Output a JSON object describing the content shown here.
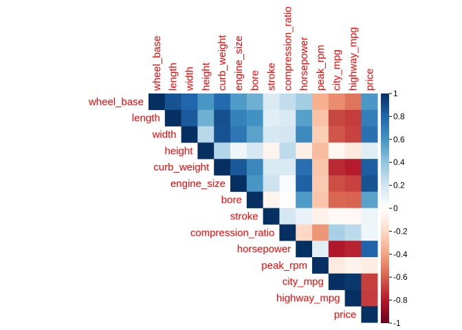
{
  "chart_data": {
    "type": "heatmap",
    "title": "",
    "layout": "upper-triangle",
    "variables": [
      "wheel_base",
      "length",
      "width",
      "height",
      "curb_weight",
      "engine_size",
      "bore",
      "stroke",
      "compression_ratio",
      "horsepower",
      "peak_rpm",
      "city_mpg",
      "highway_mpg",
      "price"
    ],
    "matrix": [
      [
        1.0,
        0.87,
        0.8,
        0.59,
        0.78,
        0.57,
        0.49,
        0.16,
        0.25,
        0.35,
        -0.36,
        -0.47,
        -0.54,
        0.58
      ],
      [
        null,
        1.0,
        0.84,
        0.49,
        0.88,
        0.68,
        0.61,
        0.13,
        0.16,
        0.55,
        -0.29,
        -0.67,
        -0.7,
        0.69
      ],
      [
        null,
        null,
        1.0,
        0.28,
        0.87,
        0.73,
        0.54,
        0.18,
        0.19,
        0.64,
        -0.25,
        -0.63,
        -0.68,
        0.75
      ],
      [
        null,
        null,
        null,
        1.0,
        0.3,
        0.07,
        0.18,
        -0.06,
        0.26,
        -0.09,
        -0.31,
        -0.05,
        -0.11,
        0.14
      ],
      [
        null,
        null,
        null,
        null,
        1.0,
        0.85,
        0.65,
        0.17,
        0.16,
        0.76,
        -0.28,
        -0.75,
        -0.79,
        0.83
      ],
      [
        null,
        null,
        null,
        null,
        null,
        1.0,
        0.59,
        0.21,
        0.03,
        0.82,
        -0.26,
        -0.65,
        -0.68,
        0.87
      ],
      [
        null,
        null,
        null,
        null,
        null,
        null,
        1.0,
        -0.06,
        0.0,
        0.57,
        -0.28,
        -0.58,
        -0.59,
        0.54
      ],
      [
        null,
        null,
        null,
        null,
        null,
        null,
        null,
        1.0,
        0.19,
        0.1,
        -0.07,
        -0.03,
        -0.04,
        0.08
      ],
      [
        null,
        null,
        null,
        null,
        null,
        null,
        null,
        null,
        1.0,
        -0.21,
        -0.44,
        0.33,
        0.27,
        0.07
      ],
      [
        null,
        null,
        null,
        null,
        null,
        null,
        null,
        null,
        null,
        1.0,
        0.13,
        -0.8,
        -0.77,
        0.81
      ],
      [
        null,
        null,
        null,
        null,
        null,
        null,
        null,
        null,
        null,
        null,
        1.0,
        -0.11,
        -0.06,
        -0.1
      ],
      [
        null,
        null,
        null,
        null,
        null,
        null,
        null,
        null,
        null,
        null,
        null,
        1.0,
        0.97,
        -0.69
      ],
      [
        null,
        null,
        null,
        null,
        null,
        null,
        null,
        null,
        null,
        null,
        null,
        null,
        1.0,
        -0.7
      ],
      [
        null,
        null,
        null,
        null,
        null,
        null,
        null,
        null,
        null,
        null,
        null,
        null,
        null,
        1.0
      ]
    ],
    "colorbar": {
      "range": [
        -1,
        1
      ],
      "ticks": [
        "1",
        "0.8",
        "0.6",
        "0.4",
        "0.2",
        "0",
        "-0.2",
        "-0.4",
        "-0.6",
        "-0.8",
        "-1"
      ],
      "tick_values": [
        1,
        0.8,
        0.6,
        0.4,
        0.2,
        0,
        -0.2,
        -0.4,
        -0.6,
        -0.8,
        -1
      ],
      "palette": [
        "#67001F",
        "#B2182B",
        "#D6604D",
        "#F4A582",
        "#FDDBC7",
        "#FFFFFF",
        "#D1E5F0",
        "#92C5DE",
        "#4393C3",
        "#2166AC",
        "#053061"
      ]
    },
    "label_color": "#FF0000",
    "grid": false,
    "legend": "right"
  }
}
